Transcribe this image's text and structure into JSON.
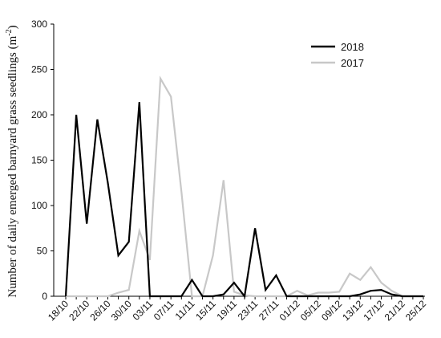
{
  "chart_data": {
    "type": "line",
    "title": "",
    "xlabel": "",
    "ylabel": "Number of daily emerged barnyard grass seedlings (m",
    "ylabel_superscript": "-2",
    "ylabel_suffix": ")",
    "ylim": [
      0,
      300
    ],
    "yticks": [
      0,
      50,
      100,
      150,
      200,
      250,
      300
    ],
    "grid": false,
    "legend_position": "top-right",
    "x_dates": [
      "18/10",
      "20/10",
      "22/10",
      "24/10",
      "26/10",
      "28/10",
      "30/10",
      "01/11",
      "03/11",
      "05/11",
      "07/11",
      "09/11",
      "11/11",
      "13/11",
      "15/11",
      "17/11",
      "19/11",
      "21/11",
      "23/11",
      "25/11",
      "27/11",
      "29/11",
      "01/12",
      "03/12",
      "05/12",
      "07/12",
      "09/12",
      "11/12",
      "13/12",
      "15/12",
      "17/12",
      "19/12",
      "21/12",
      "23/12",
      "25/12"
    ],
    "x_tick_labels": [
      "18/10",
      "22/10",
      "26/10",
      "30/10",
      "03/11",
      "07/11",
      "11/11",
      "15/11",
      "19/11",
      "23/11",
      "27/11",
      "01/12",
      "05/12",
      "09/12",
      "13/12",
      "17/12",
      "21/12",
      "25/12"
    ],
    "series": [
      {
        "name": "2018",
        "color": "#000000",
        "values": [
          0,
          200,
          80,
          195,
          125,
          45,
          60,
          214,
          0,
          0,
          0,
          0,
          18,
          0,
          0,
          2,
          15,
          0,
          75,
          7,
          23,
          0,
          0,
          0,
          0,
          0,
          0,
          0,
          2,
          6,
          7,
          2,
          0,
          0,
          0
        ]
      },
      {
        "name": "2017",
        "color": "#c8c8c8",
        "values": [
          0,
          0,
          0,
          0,
          0,
          4,
          7,
          72,
          40,
          240,
          220,
          115,
          0,
          0,
          45,
          128,
          5,
          1,
          0,
          0,
          0,
          0,
          6,
          1,
          4,
          4,
          5,
          25,
          18,
          32,
          15,
          6,
          0,
          0,
          0
        ]
      }
    ]
  }
}
